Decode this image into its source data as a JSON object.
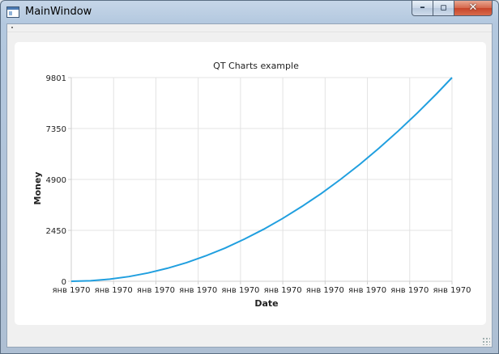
{
  "window": {
    "title": "MainWindow"
  },
  "chart_data": {
    "type": "line",
    "title": "QT Charts example",
    "xlabel": "Date",
    "ylabel": "Money",
    "ylim": [
      0,
      9801
    ],
    "y_ticks": [
      0,
      2450,
      4900,
      7350,
      9801
    ],
    "x_tick_labels": [
      "янв 1970",
      "янв 1970",
      "янв 1970",
      "янв 1970",
      "янв 1970",
      "янв 1970",
      "янв 1970",
      "янв 1970",
      "янв 1970",
      "янв 1970"
    ],
    "grid": true,
    "legend": "none",
    "line_color": "#209fdf",
    "series": [
      {
        "x": [
          0,
          5,
          10,
          15,
          20,
          25,
          30,
          35,
          40,
          45,
          50,
          55,
          60,
          65,
          70,
          75,
          80,
          85,
          90,
          95,
          99
        ],
        "values": [
          0,
          25,
          100,
          225,
          400,
          625,
          900,
          1225,
          1600,
          2025,
          2500,
          3025,
          3600,
          4225,
          4900,
          5625,
          6400,
          7225,
          8100,
          9025,
          9801
        ]
      }
    ]
  }
}
